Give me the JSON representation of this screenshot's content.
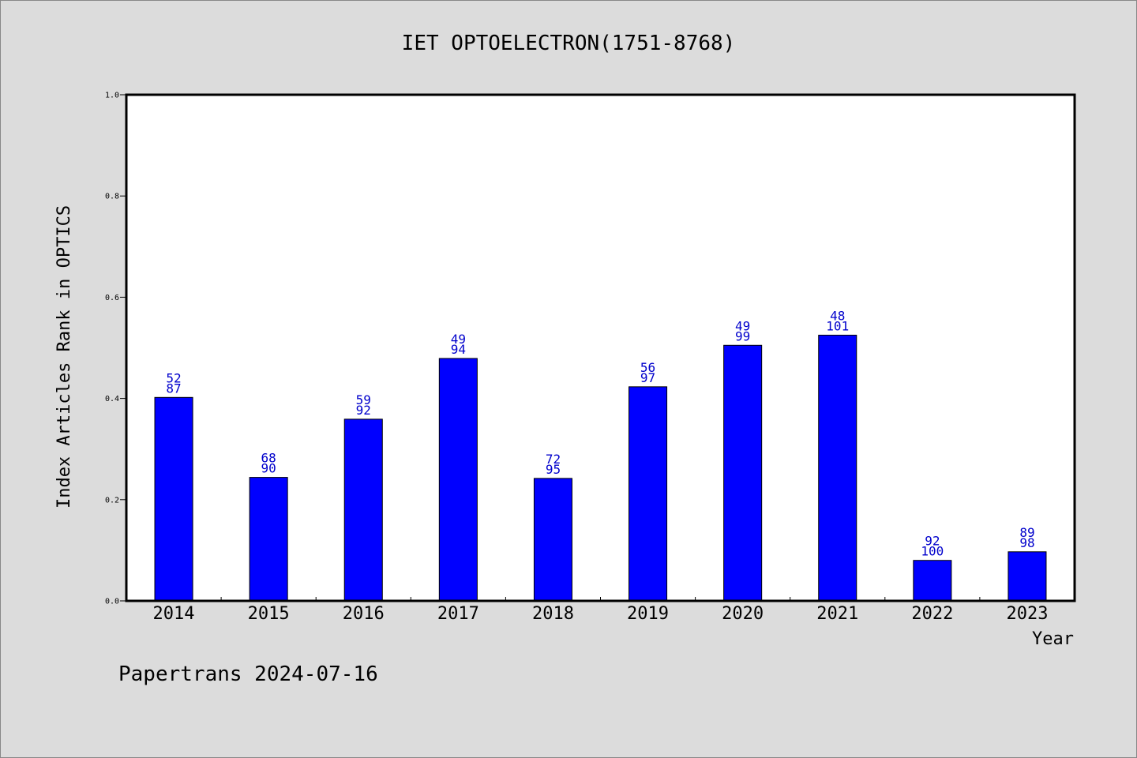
{
  "chart_data": {
    "type": "bar",
    "title": "IET OPTOELECTRON(1751-8768)",
    "xlabel": "Year",
    "ylabel": "Index Articles Rank in OPTICS",
    "ylim": [
      0,
      1
    ],
    "yticks": [
      "0.0",
      "0.2",
      "0.4",
      "0.6",
      "0.8",
      "1.0"
    ],
    "grid": false,
    "categories": [
      "2014",
      "2015",
      "2016",
      "2017",
      "2018",
      "2019",
      "2020",
      "2021",
      "2022",
      "2023"
    ],
    "values": [
      0.402,
      0.244,
      0.359,
      0.479,
      0.242,
      0.423,
      0.505,
      0.525,
      0.08,
      0.097
    ],
    "labels_top": [
      "52",
      "68",
      "59",
      "49",
      "72",
      "56",
      "49",
      "48",
      "92",
      "89"
    ],
    "labels_bottom": [
      "87",
      "90",
      "92",
      "94",
      "95",
      "97",
      "99",
      "101",
      "100",
      "98"
    ],
    "bar_color": "#0000ff",
    "label_color": "#0000cc"
  },
  "footer": "Papertrans 2024-07-16"
}
